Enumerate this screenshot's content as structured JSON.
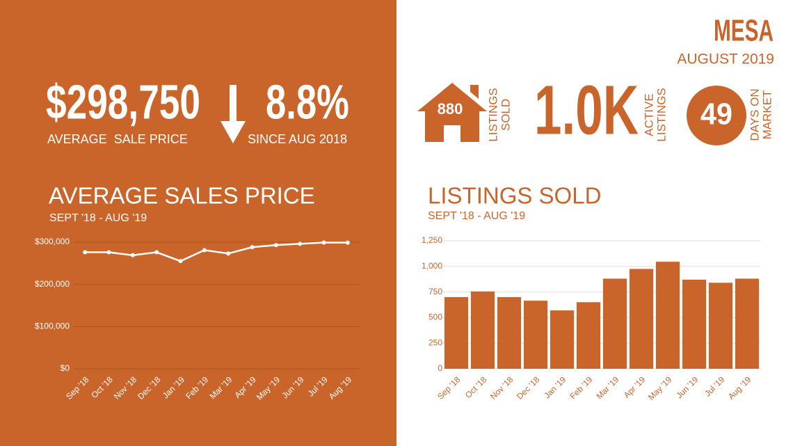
{
  "header": {
    "city": "MESA",
    "period": "AUGUST 2019"
  },
  "stats": {
    "average_sale_price": {
      "value": "$298,750",
      "label": "AVERAGE  SALE PRICE"
    },
    "change": {
      "value": "8.8%",
      "label": "SINCE AUG 2018"
    },
    "listings_sold": {
      "value": "880",
      "label": [
        "LISTINGS",
        "SOLD"
      ]
    },
    "active_listings": {
      "value": "1.0K",
      "label": [
        "ACTIVE",
        "LISTINGS"
      ]
    },
    "days_on_market": {
      "value": "49",
      "label": [
        "DAYS ON",
        "MARKET"
      ]
    }
  },
  "chart_data": [
    {
      "type": "line",
      "title": "AVERAGE SALES PRICE",
      "subtitle": "SEPT '18 - AUG '19",
      "categories": [
        "Sep '18",
        "Oct '18",
        "Nov '18",
        "Dec '18",
        "Jan '19",
        "Feb '19",
        "Mar '19",
        "Apr '19",
        "May '19",
        "Jun '19",
        "Jul '19",
        "Aug '19"
      ],
      "series": [
        {
          "name": "Average Sales Price",
          "color": "#ffffff",
          "values": [
            276000,
            276000,
            269000,
            276000,
            255000,
            281000,
            273000,
            288000,
            293000,
            296000,
            299000,
            298750
          ]
        }
      ],
      "ylim": [
        0,
        300000
      ],
      "yticks": [
        {
          "value": 0,
          "label": "$0"
        },
        {
          "value": 100000,
          "label": "$100,000"
        },
        {
          "value": 200000,
          "label": "$200,000"
        },
        {
          "value": 300000,
          "label": "$300,000"
        }
      ],
      "grid": true
    },
    {
      "type": "bar",
      "title": "LISTINGS SOLD",
      "subtitle": "SEPT '18 - AUG '19",
      "categories": [
        "Sep '18",
        "Oct '18",
        "Nov '18",
        "Dec '18",
        "Jan '19",
        "Feb '19",
        "Mar '19",
        "Apr '19",
        "May '19",
        "Jun '19",
        "Jul '19",
        "Aug '19"
      ],
      "series": [
        {
          "name": "Listings Sold",
          "color": "#c9652b",
          "values": [
            700,
            755,
            700,
            665,
            570,
            650,
            880,
            975,
            1045,
            870,
            840,
            880
          ]
        }
      ],
      "ylim": [
        0,
        1250
      ],
      "yticks": [
        0,
        250,
        500,
        750,
        {
          "value": 1000,
          "label": "1,000"
        },
        {
          "value": 1250,
          "label": "1,250"
        }
      ],
      "grid": true
    }
  ]
}
